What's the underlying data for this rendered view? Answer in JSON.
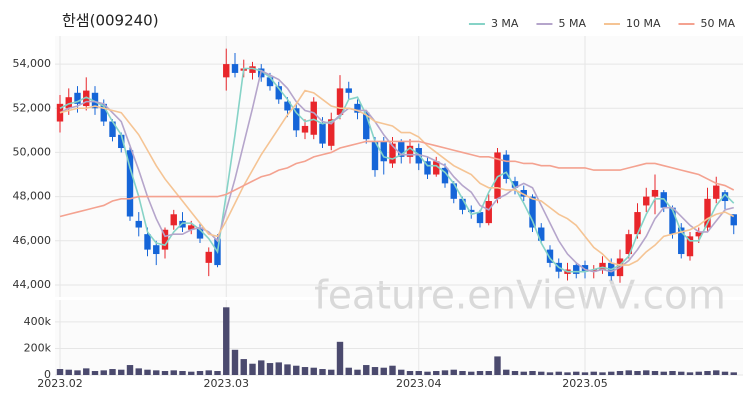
{
  "chart_data": {
    "type": "candlestick",
    "title": "한샘(009240)",
    "watermark": "feature.enViewV.com",
    "up_color": "#e8262b",
    "down_color": "#1565d8",
    "volume_color": "#4b4a6e",
    "grid": true,
    "legend": "top-right",
    "xticks": [
      {
        "value": 0,
        "label": "2023.02"
      },
      {
        "value": 19,
        "label": "2023.03"
      },
      {
        "value": 41,
        "label": "2023.04"
      },
      {
        "value": 60,
        "label": "2023.05"
      }
    ],
    "ylim": [
      43500,
      55000
    ],
    "yticks": [
      {
        "value": 44000,
        "label": "44,000"
      },
      {
        "value": 46000,
        "label": "46,000"
      },
      {
        "value": 48000,
        "label": "48,000"
      },
      {
        "value": 50000,
        "label": "50,000"
      },
      {
        "value": 52000,
        "label": "52,000"
      },
      {
        "value": 54000,
        "label": "54,000"
      }
    ],
    "volume_ylim": [
      0,
      550000
    ],
    "volume_yticks": [
      0,
      {
        "value": 200000,
        "label": "200k"
      },
      {
        "value": 400000,
        "label": "400k"
      }
    ],
    "open": [
      51400,
      52000,
      52700,
      52100,
      52700,
      52200,
      51400,
      50800,
      50100,
      46900,
      46300,
      45800,
      45600,
      46700,
      46900,
      46500,
      46600,
      45000,
      46100,
      53400,
      54000,
      53700,
      53600,
      53800,
      53400,
      53000,
      52300,
      52000,
      50900,
      50800,
      51300,
      50300,
      51700,
      52900,
      52200,
      51800,
      50500,
      50500,
      49500,
      50500,
      49800,
      50200,
      49600,
      49000,
      49300,
      48600,
      47900,
      47400,
      47300,
      46800,
      47900,
      49900,
      48700,
      48300,
      48000,
      46600,
      45600,
      45000,
      44500,
      44900,
      44900,
      44600,
      44700,
      45000,
      44400,
      45400,
      46300,
      47600,
      48000,
      48200,
      47500,
      46600,
      45300,
      46200,
      46600,
      47900,
      48200,
      47200
    ],
    "high": [
      52600,
      52900,
      53000,
      53400,
      53000,
      52400,
      51500,
      50900,
      50300,
      47300,
      46600,
      46000,
      46600,
      47400,
      47300,
      46900,
      46800,
      45700,
      46300,
      54700,
      54500,
      54200,
      54100,
      54000,
      53600,
      53200,
      52500,
      52200,
      51500,
      52500,
      51600,
      51800,
      53500,
      53200,
      52400,
      51900,
      50700,
      50700,
      50700,
      50600,
      50600,
      50400,
      49800,
      49800,
      49500,
      48700,
      48000,
      47600,
      47400,
      48100,
      50200,
      50100,
      48900,
      48500,
      48100,
      46800,
      45800,
      45200,
      45000,
      45000,
      45100,
      44900,
      45300,
      45200,
      45600,
      46500,
      47700,
      48400,
      49000,
      48300,
      47600,
      46800,
      46400,
      46600,
      48400,
      48900,
      48300,
      47200
    ],
    "low": [
      50900,
      51700,
      51800,
      51900,
      51700,
      51200,
      50500,
      50000,
      46900,
      46200,
      45300,
      44900,
      45200,
      46500,
      46400,
      46300,
      45900,
      44400,
      44800,
      52800,
      53400,
      53400,
      53300,
      53200,
      52800,
      52200,
      51600,
      50700,
      50600,
      50600,
      50200,
      50100,
      51500,
      52400,
      51500,
      50400,
      48900,
      49000,
      49300,
      49500,
      49500,
      49200,
      48800,
      48900,
      48400,
      47700,
      47200,
      47000,
      46600,
      46700,
      47700,
      48600,
      48100,
      47800,
      46400,
      45900,
      44800,
      44300,
      44200,
      44300,
      44300,
      44300,
      44500,
      44200,
      44100,
      45200,
      46100,
      47300,
      47200,
      47300,
      46100,
      45200,
      45100,
      45900,
      46400,
      47700,
      47400,
      46300
    ],
    "close": [
      52200,
      52500,
      52200,
      52800,
      52000,
      51400,
      50700,
      50200,
      47100,
      46600,
      45600,
      45400,
      46500,
      47200,
      46600,
      46700,
      46100,
      45500,
      44900,
      54000,
      53600,
      53800,
      53900,
      53400,
      53000,
      52400,
      51900,
      51000,
      51200,
      52300,
      50400,
      51500,
      52900,
      52700,
      51800,
      50600,
      49200,
      49600,
      50400,
      49800,
      50300,
      49500,
      49000,
      49600,
      48600,
      47900,
      47400,
      47300,
      46800,
      47800,
      50000,
      48800,
      48400,
      48000,
      46600,
      46000,
      45000,
      44600,
      44700,
      44500,
      44600,
      44700,
      45000,
      44400,
      45200,
      46300,
      47300,
      48000,
      48300,
      47500,
      46300,
      45400,
      46200,
      46400,
      47900,
      48500,
      47800,
      46700
    ],
    "volume": [
      45000,
      40000,
      35000,
      50000,
      30000,
      35000,
      45000,
      40000,
      75000,
      50000,
      40000,
      35000,
      30000,
      35000,
      30000,
      25000,
      30000,
      35000,
      30000,
      510000,
      190000,
      120000,
      85000,
      110000,
      90000,
      95000,
      80000,
      70000,
      60000,
      55000,
      45000,
      40000,
      250000,
      55000,
      40000,
      75000,
      60000,
      55000,
      70000,
      40000,
      30000,
      30000,
      25000,
      30000,
      35000,
      40000,
      30000,
      25000,
      30000,
      30000,
      140000,
      40000,
      30000,
      25000,
      30000,
      25000,
      20000,
      25000,
      20000,
      25000,
      20000,
      25000,
      20000,
      25000,
      30000,
      35000,
      30000,
      35000,
      30000,
      25000,
      30000,
      25000,
      20000,
      25000,
      30000,
      35000,
      25000,
      20000
    ],
    "series": [
      {
        "name": "3 MA",
        "color": "#86d3c7",
        "values": [
          52000,
          52200,
          52300,
          52500,
          52300,
          52100,
          51400,
          50800,
          49300,
          48000,
          46400,
          45900,
          45800,
          46400,
          46800,
          46800,
          46500,
          46100,
          45500,
          48100,
          50800,
          53800,
          53800,
          53700,
          53400,
          52900,
          52400,
          51800,
          51400,
          51500,
          51300,
          51400,
          51600,
          52400,
          52500,
          51700,
          50500,
          49800,
          49700,
          49900,
          50200,
          49900,
          49400,
          49400,
          49100,
          48600,
          47900,
          47200,
          47300,
          48200,
          48900,
          49100,
          48400,
          47700,
          46900,
          45900,
          45200,
          44800,
          44600,
          44600,
          44600,
          44700,
          44800,
          44700,
          44900,
          45300,
          46300,
          47200,
          47900,
          47900,
          47400,
          46400,
          46000,
          46000,
          46800,
          47600,
          48100,
          47700
        ]
      },
      {
        "name": "5 MA",
        "color": "#b5a5cb",
        "values": [
          51800,
          52000,
          52100,
          52300,
          52300,
          52200,
          51800,
          51400,
          50300,
          49200,
          48000,
          47000,
          46200,
          46300,
          46300,
          46500,
          46600,
          46400,
          46000,
          47400,
          48800,
          50400,
          52000,
          53700,
          53500,
          53300,
          52900,
          52300,
          51900,
          51800,
          51400,
          51300,
          51700,
          52000,
          51900,
          51900,
          51400,
          50800,
          50300,
          49900,
          49900,
          49900,
          49800,
          49600,
          49400,
          48900,
          48500,
          48200,
          47600,
          47400,
          47900,
          48100,
          48400,
          48600,
          48400,
          47600,
          46800,
          46000,
          45400,
          45000,
          44700,
          44600,
          44700,
          44600,
          44800,
          45100,
          45600,
          46200,
          47000,
          47500,
          47500,
          47100,
          46700,
          46400,
          46400,
          46900,
          47400,
          47500
        ]
      },
      {
        "name": "10 MA",
        "color": "#f5c494",
        "values": [
          51800,
          51900,
          52000,
          52000,
          52100,
          52000,
          51900,
          51800,
          51300,
          50800,
          50100,
          49400,
          48800,
          48300,
          47800,
          47300,
          46800,
          46300,
          46200,
          46900,
          47700,
          48500,
          49200,
          49900,
          50500,
          51100,
          51700,
          52200,
          52800,
          52700,
          52400,
          52100,
          52000,
          52000,
          51900,
          51700,
          51400,
          51300,
          51200,
          50900,
          50900,
          50700,
          50300,
          50000,
          49700,
          49400,
          49200,
          49000,
          48600,
          48400,
          48400,
          48300,
          48300,
          48100,
          47900,
          47800,
          47500,
          47200,
          47000,
          46700,
          46200,
          45700,
          45400,
          45000,
          44900,
          44900,
          45100,
          45500,
          45800,
          46200,
          46300,
          46400,
          46500,
          46700,
          47000,
          47200,
          47300,
          47100
        ]
      },
      {
        "name": "50 MA",
        "color": "#f4a290",
        "values": [
          47100,
          47200,
          47300,
          47400,
          47500,
          47600,
          47800,
          47900,
          47900,
          48000,
          48000,
          48000,
          48000,
          48000,
          48000,
          48000,
          48000,
          48000,
          48000,
          48100,
          48300,
          48500,
          48700,
          48900,
          49000,
          49200,
          49300,
          49500,
          49600,
          49800,
          49900,
          50000,
          50200,
          50300,
          50400,
          50500,
          50500,
          50500,
          50500,
          50500,
          50500,
          50500,
          50400,
          50300,
          50200,
          50100,
          50000,
          49900,
          49800,
          49800,
          49700,
          49600,
          49600,
          49500,
          49500,
          49400,
          49400,
          49300,
          49300,
          49300,
          49300,
          49200,
          49200,
          49200,
          49200,
          49300,
          49400,
          49500,
          49500,
          49400,
          49300,
          49200,
          49100,
          49000,
          48800,
          48600,
          48500,
          48300
        ]
      }
    ]
  }
}
